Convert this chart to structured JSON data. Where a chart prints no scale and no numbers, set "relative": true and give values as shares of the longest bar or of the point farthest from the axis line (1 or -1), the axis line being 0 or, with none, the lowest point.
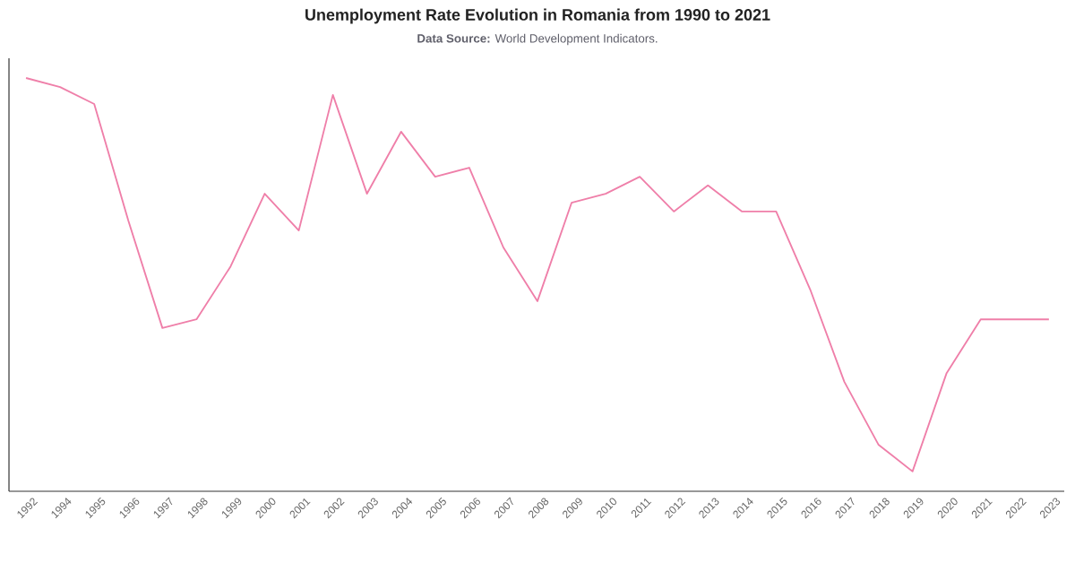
{
  "chart_data": {
    "type": "line",
    "title": "Unemployment Rate Evolution in Romania from 1990 to 2021",
    "subtitle": "**Data Source:** World Development Indicators.",
    "categories": [
      "1992",
      "1994",
      "1995",
      "1996",
      "1997",
      "1998",
      "1999",
      "2000",
      "2001",
      "2002",
      "2003",
      "2004",
      "2005",
      "2006",
      "2007",
      "2008",
      "2009",
      "2010",
      "2011",
      "2012",
      "2013",
      "2014",
      "2015",
      "2016",
      "2017",
      "2018",
      "2019",
      "2020",
      "2021",
      "2022",
      "2023"
    ],
    "values": [
      1.0,
      0.978,
      0.937,
      0.655,
      0.395,
      0.416,
      0.544,
      0.72,
      0.631,
      0.959,
      0.72,
      0.87,
      0.761,
      0.783,
      0.59,
      0.46,
      0.698,
      0.72,
      0.761,
      0.677,
      0.74,
      0.677,
      0.677,
      0.488,
      0.265,
      0.113,
      0.048,
      0.286,
      0.416,
      0.416,
      0.416
    ],
    "color": "#ef7fa9",
    "relative": true,
    "tick_labels": "x"
  }
}
